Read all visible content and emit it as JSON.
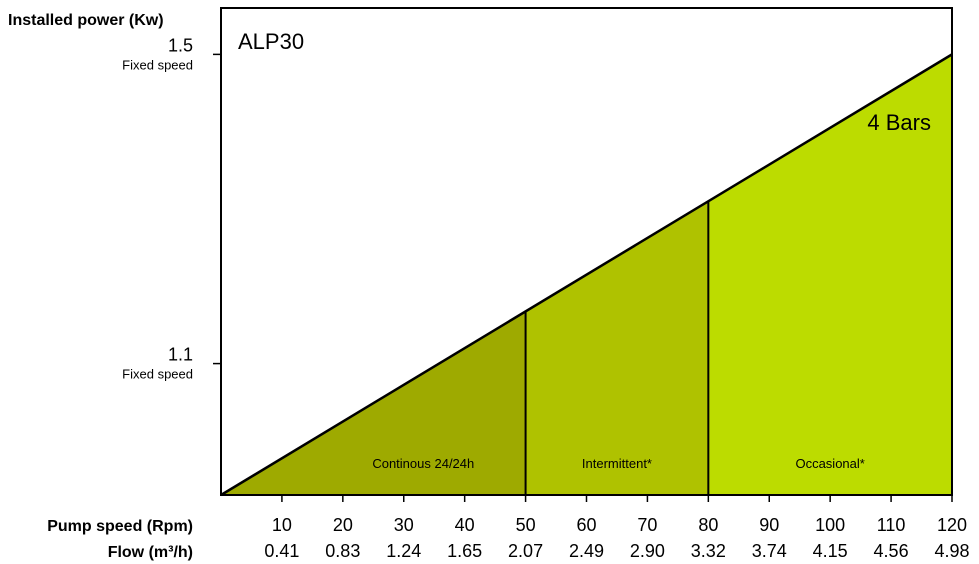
{
  "chart_data": {
    "type": "area",
    "title": "ALP30",
    "ylabel": "Installed power (Kw)",
    "xlabel": "Pump speed (Rpm)",
    "xlabel2": "Flow (m³/h)",
    "x": [
      0,
      120
    ],
    "y": [
      0.93,
      1.5
    ],
    "xlim": [
      0,
      120
    ],
    "ylim": [
      0.93,
      1.56
    ],
    "xticks": [
      10,
      20,
      30,
      40,
      50,
      60,
      70,
      80,
      90,
      100,
      110,
      120
    ],
    "flow_ticks": [
      "0.41",
      "0.83",
      "1.24",
      "1.65",
      "2.07",
      "2.49",
      "2.90",
      "3.32",
      "3.74",
      "4.15",
      "4.56",
      "4.98"
    ],
    "yticks": [
      {
        "value": 1.5,
        "label": "1.5",
        "sublabel": "Fixed speed"
      },
      {
        "value": 1.1,
        "label": "1.1",
        "sublabel": "Fixed speed"
      }
    ],
    "series": [
      {
        "name": "4 Bars",
        "x": [
          0,
          120
        ],
        "y": [
          0.93,
          1.5
        ]
      }
    ],
    "zones": [
      {
        "label": "Continous 24/24h",
        "from": 0,
        "to": 50,
        "color": "#9eaa00"
      },
      {
        "label": "Intermittent*",
        "from": 50,
        "to": 80,
        "color": "#afc200"
      },
      {
        "label": "Occasional*",
        "from": 80,
        "to": 120,
        "color": "#bcdc00"
      }
    ],
    "grid": false,
    "legend": "none"
  }
}
